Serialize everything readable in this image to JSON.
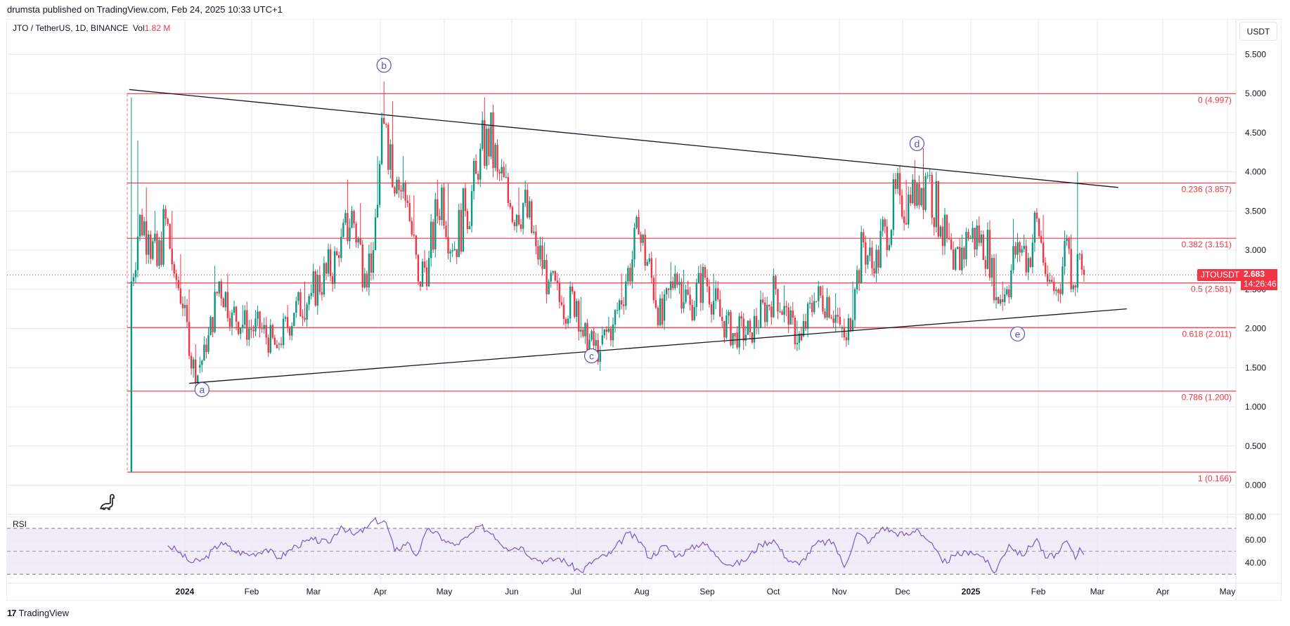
{
  "header": {
    "published_text": "drumsta published on TradingView.com, Feb 24, 2025 10:33 UTC+1"
  },
  "legend": {
    "symbol_text": "JTO / TetherUS, 1D, BINANCE",
    "vol_label": "Vol",
    "vol_value": "1.82 M"
  },
  "price_axis": {
    "currency": "USDT",
    "ticks": [
      "5.500",
      "5.000",
      "4.500",
      "4.000",
      "3.500",
      "3.000",
      "2.500",
      "2.000",
      "1.500",
      "1.000",
      "0.500",
      "0.000"
    ]
  },
  "last_price": {
    "symbol": "JTOUSDT",
    "value": "2.683",
    "countdown": "14:26:46"
  },
  "rsi": {
    "title": "RSI",
    "ticks": [
      "80.00",
      "60.00",
      "40.00"
    ]
  },
  "time_axis": {
    "labels": [
      "2024",
      "Feb",
      "Mar",
      "Apr",
      "May",
      "Jun",
      "Jul",
      "Aug",
      "Sep",
      "Oct",
      "Nov",
      "Dec",
      "2025",
      "Feb",
      "Mar",
      "Apr",
      "May"
    ]
  },
  "footer": {
    "brand": "TradingView",
    "brand_mark": "17"
  },
  "colors": {
    "up": "#089981",
    "down": "#f23645",
    "fib": "#f23645",
    "trendline": "#131722",
    "wave_label": "#5b50b8",
    "rsi_line": "#7e57c2",
    "rsi_band": "#ede7f6",
    "grid": "#e6e8ee"
  },
  "chart_data": {
    "type": "candlestick",
    "title": "JTO / TetherUS, 1D, BINANCE",
    "ylabel": "USDT",
    "ylim": [
      0,
      5.6
    ],
    "x_range": [
      "2023-12-07",
      "2025-05-01"
    ],
    "grid": true,
    "last_close": 2.683,
    "volume_last": "1.82M",
    "price_anchors": [
      [
        "2023-12-07",
        0.17,
        4.95,
        2.6
      ],
      [
        "2023-12-08",
        2.6,
        4.4,
        3.45
      ],
      [
        "2023-12-12",
        3.45,
        3.8,
        3.2
      ],
      [
        "2023-12-16",
        3.2,
        3.5,
        2.8
      ],
      [
        "2023-12-20",
        2.8,
        3.5,
        3.4
      ],
      [
        "2023-12-24",
        3.4,
        3.5,
        2.7
      ],
      [
        "2023-12-28",
        2.7,
        2.95,
        2.3
      ],
      [
        "2024-01-02",
        2.3,
        2.5,
        1.65
      ],
      [
        "2024-01-04",
        1.65,
        1.8,
        1.4
      ],
      [
        "2024-01-08",
        1.5,
        1.9,
        1.7
      ],
      [
        "2024-01-12",
        1.7,
        2.8,
        2.6
      ],
      [
        "2024-01-18",
        2.6,
        2.7,
        2.2
      ],
      [
        "2024-01-24",
        2.2,
        2.3,
        2.0
      ],
      [
        "2024-02-01",
        2.0,
        2.2,
        2.0
      ],
      [
        "2024-02-06",
        2.0,
        2.05,
        1.75
      ],
      [
        "2024-02-14",
        1.8,
        2.3,
        2.2
      ],
      [
        "2024-02-22",
        2.2,
        2.6,
        2.45
      ],
      [
        "2024-03-01",
        2.45,
        2.8,
        2.7
      ],
      [
        "2024-03-08",
        2.7,
        3.0,
        2.9
      ],
      [
        "2024-03-14",
        2.9,
        3.9,
        3.5
      ],
      [
        "2024-03-20",
        3.5,
        3.6,
        2.7
      ],
      [
        "2024-03-26",
        2.7,
        3.1,
        3.0
      ],
      [
        "2024-03-30",
        3.0,
        4.2,
        4.1
      ],
      [
        "2024-04-02",
        4.1,
        5.15,
        4.6
      ],
      [
        "2024-04-05",
        4.6,
        4.9,
        3.9
      ],
      [
        "2024-04-10",
        3.9,
        4.2,
        3.6
      ],
      [
        "2024-04-15",
        3.6,
        3.7,
        2.6
      ],
      [
        "2024-04-20",
        2.6,
        3.0,
        2.9
      ],
      [
        "2024-04-25",
        2.9,
        3.9,
        3.8
      ],
      [
        "2024-05-01",
        3.8,
        3.85,
        3.0
      ],
      [
        "2024-05-06",
        3.0,
        3.6,
        3.5
      ],
      [
        "2024-05-12",
        3.5,
        4.1,
        3.9
      ],
      [
        "2024-05-18",
        3.9,
        4.95,
        4.55
      ],
      [
        "2024-05-22",
        4.55,
        4.6,
        4.0
      ],
      [
        "2024-05-27",
        4.0,
        4.1,
        3.55
      ],
      [
        "2024-06-02",
        3.55,
        3.8,
        3.6
      ],
      [
        "2024-06-08",
        3.6,
        3.65,
        3.05
      ],
      [
        "2024-06-14",
        3.05,
        3.1,
        2.6
      ],
      [
        "2024-06-20",
        2.6,
        2.65,
        2.3
      ],
      [
        "2024-06-26",
        2.3,
        2.5,
        2.35
      ],
      [
        "2024-07-03",
        2.35,
        2.4,
        1.9
      ],
      [
        "2024-07-06",
        1.9,
        1.95,
        1.7
      ],
      [
        "2024-07-14",
        1.8,
        2.15,
        2.05
      ],
      [
        "2024-07-20",
        2.05,
        2.7,
        2.6
      ],
      [
        "2024-07-26",
        2.6,
        3.35,
        3.2
      ],
      [
        "2024-08-01",
        3.2,
        3.25,
        2.85
      ],
      [
        "2024-08-05",
        2.85,
        2.9,
        2.05
      ],
      [
        "2024-08-12",
        2.1,
        2.85,
        2.7
      ],
      [
        "2024-08-18",
        2.7,
        2.75,
        2.3
      ],
      [
        "2024-08-25",
        2.3,
        2.8,
        2.65
      ],
      [
        "2024-09-01",
        2.65,
        2.7,
        2.15
      ],
      [
        "2024-09-08",
        2.15,
        2.2,
        1.9
      ],
      [
        "2024-09-15",
        1.95,
        2.1,
        1.95
      ],
      [
        "2024-09-22",
        1.95,
        2.35,
        2.3
      ],
      [
        "2024-09-30",
        2.3,
        2.6,
        2.5
      ],
      [
        "2024-10-04",
        2.5,
        2.55,
        2.05
      ],
      [
        "2024-10-10",
        2.05,
        2.1,
        1.85
      ],
      [
        "2024-10-16",
        1.9,
        2.4,
        2.35
      ],
      [
        "2024-10-22",
        2.35,
        2.55,
        2.4
      ],
      [
        "2024-10-28",
        2.4,
        2.45,
        2.05
      ],
      [
        "2024-11-03",
        2.0,
        2.05,
        1.85
      ],
      [
        "2024-11-06",
        1.85,
        2.6,
        2.5
      ],
      [
        "2024-11-10",
        2.5,
        3.2,
        3.1
      ],
      [
        "2024-11-14",
        3.1,
        3.15,
        2.7
      ],
      [
        "2024-11-19",
        2.7,
        3.4,
        3.3
      ],
      [
        "2024-11-24",
        3.3,
        3.95,
        3.7
      ],
      [
        "2024-12-01",
        3.7,
        3.9,
        3.6
      ],
      [
        "2024-12-06",
        3.6,
        4.15,
        3.85
      ],
      [
        "2024-12-09",
        3.85,
        4.3,
        3.95
      ],
      [
        "2024-12-14",
        3.95,
        4.0,
        3.3
      ],
      [
        "2024-12-20",
        3.3,
        3.35,
        2.75
      ],
      [
        "2024-12-26",
        2.75,
        3.2,
        3.15
      ],
      [
        "2025-01-02",
        3.15,
        3.35,
        3.2
      ],
      [
        "2025-01-08",
        3.2,
        3.25,
        2.9
      ],
      [
        "2025-01-13",
        2.9,
        2.95,
        2.4
      ],
      [
        "2025-01-15",
        2.4,
        2.6,
        2.5
      ],
      [
        "2025-01-20",
        2.5,
        3.4,
        3.1
      ],
      [
        "2025-01-25",
        3.1,
        3.2,
        2.9
      ],
      [
        "2025-01-30",
        2.9,
        3.5,
        3.4
      ],
      [
        "2025-02-03",
        3.4,
        3.45,
        2.6
      ],
      [
        "2025-02-08",
        2.6,
        2.65,
        2.45
      ],
      [
        "2025-02-13",
        2.5,
        3.25,
        3.15
      ],
      [
        "2025-02-17",
        3.15,
        3.2,
        2.55
      ],
      [
        "2025-02-20",
        2.55,
        4.0,
        2.95
      ],
      [
        "2025-02-23",
        2.95,
        3.0,
        2.75
      ],
      [
        "2025-02-24",
        2.75,
        2.8,
        2.683
      ]
    ],
    "fibonacci": [
      {
        "level": "0",
        "price": 4.997,
        "label": "0 (4.997)"
      },
      {
        "level": "0.236",
        "price": 3.857,
        "label": "0.236 (3.857)"
      },
      {
        "level": "0.382",
        "price": 3.151,
        "label": "0.382 (3.151)"
      },
      {
        "level": "0.5",
        "price": 2.581,
        "label": "0.5 (2.581)"
      },
      {
        "level": "0.618",
        "price": 2.011,
        "label": "0.618 (2.011)"
      },
      {
        "level": "0.786",
        "price": 1.2,
        "label": "0.786 (1.200)"
      },
      {
        "level": "1",
        "price": 0.166,
        "label": "1 (0.166)"
      }
    ],
    "trendlines": [
      {
        "name": "upper",
        "from": [
          "2023-12-06",
          5.05
        ],
        "to": [
          "2025-03-12",
          3.8
        ]
      },
      {
        "name": "lower",
        "from": [
          "2024-01-03",
          1.3
        ],
        "to": [
          "2025-03-16",
          2.25
        ]
      }
    ],
    "wave_labels": [
      {
        "label": "a",
        "date": "2024-01-09",
        "price": 1.22
      },
      {
        "label": "b",
        "date": "2024-04-03",
        "price": 5.36
      },
      {
        "label": "c",
        "date": "2024-07-09",
        "price": 1.65
      },
      {
        "label": "d",
        "date": "2024-12-08",
        "price": 4.36
      },
      {
        "label": "e",
        "date": "2025-01-24",
        "price": 1.93
      }
    ],
    "rsi": {
      "levels": {
        "upper": 70,
        "middle": 50,
        "lower": 30
      },
      "ylim": [
        25,
        85
      ],
      "series": [
        [
          "2023-12-24",
          55
        ],
        [
          "2023-12-28",
          51
        ],
        [
          "2024-01-04",
          40
        ],
        [
          "2024-01-10",
          43
        ],
        [
          "2024-01-18",
          58
        ],
        [
          "2024-01-24",
          50
        ],
        [
          "2024-02-01",
          47
        ],
        [
          "2024-02-08",
          52
        ],
        [
          "2024-02-14",
          44
        ],
        [
          "2024-02-22",
          55
        ],
        [
          "2024-03-01",
          60
        ],
        [
          "2024-03-08",
          57
        ],
        [
          "2024-03-14",
          72
        ],
        [
          "2024-03-20",
          64
        ],
        [
          "2024-03-26",
          70
        ],
        [
          "2024-03-29",
          77
        ],
        [
          "2024-04-04",
          75
        ],
        [
          "2024-04-08",
          50
        ],
        [
          "2024-04-14",
          58
        ],
        [
          "2024-04-18",
          46
        ],
        [
          "2024-04-24",
          70
        ],
        [
          "2024-05-01",
          60
        ],
        [
          "2024-05-06",
          55
        ],
        [
          "2024-05-12",
          62
        ],
        [
          "2024-05-18",
          72
        ],
        [
          "2024-05-24",
          65
        ],
        [
          "2024-05-30",
          53
        ],
        [
          "2024-06-06",
          54
        ],
        [
          "2024-06-12",
          44
        ],
        [
          "2024-06-18",
          41
        ],
        [
          "2024-06-24",
          44
        ],
        [
          "2024-07-04",
          32
        ],
        [
          "2024-07-10",
          42
        ],
        [
          "2024-07-18",
          48
        ],
        [
          "2024-07-26",
          66
        ],
        [
          "2024-08-01",
          58
        ],
        [
          "2024-08-05",
          44
        ],
        [
          "2024-08-12",
          55
        ],
        [
          "2024-08-18",
          46
        ],
        [
          "2024-08-24",
          52
        ],
        [
          "2024-08-30",
          58
        ],
        [
          "2024-09-06",
          45
        ],
        [
          "2024-09-12",
          38
        ],
        [
          "2024-09-18",
          41
        ],
        [
          "2024-09-26",
          56
        ],
        [
          "2024-10-02",
          60
        ],
        [
          "2024-10-08",
          44
        ],
        [
          "2024-10-14",
          38
        ],
        [
          "2024-10-22",
          57
        ],
        [
          "2024-10-30",
          58
        ],
        [
          "2024-11-04",
          36
        ],
        [
          "2024-11-10",
          66
        ],
        [
          "2024-11-16",
          58
        ],
        [
          "2024-11-22",
          71
        ],
        [
          "2024-11-28",
          66
        ],
        [
          "2024-12-04",
          64
        ],
        [
          "2024-12-08",
          70
        ],
        [
          "2024-12-14",
          58
        ],
        [
          "2024-12-20",
          40
        ],
        [
          "2024-12-26",
          46
        ],
        [
          "2025-01-02",
          50
        ],
        [
          "2025-01-08",
          45
        ],
        [
          "2025-01-13",
          31
        ],
        [
          "2025-01-20",
          56
        ],
        [
          "2025-01-26",
          46
        ],
        [
          "2025-02-02",
          61
        ],
        [
          "2025-02-06",
          44
        ],
        [
          "2025-02-12",
          48
        ],
        [
          "2025-02-16",
          59
        ],
        [
          "2025-02-20",
          43
        ],
        [
          "2025-02-22",
          53
        ],
        [
          "2025-02-24",
          47
        ]
      ]
    }
  }
}
